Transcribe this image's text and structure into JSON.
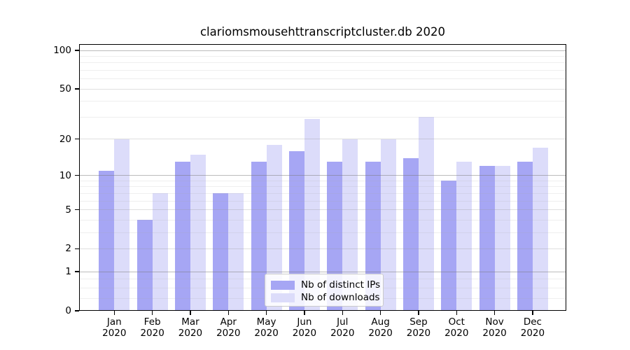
{
  "title": "clariomsmousehttranscriptcluster.db 2020",
  "chart_data": {
    "type": "bar",
    "categories": [
      "Jan",
      "Feb",
      "Mar",
      "Apr",
      "May",
      "Jun",
      "Jul",
      "Aug",
      "Sep",
      "Oct",
      "Nov",
      "Dec"
    ],
    "category_year": "2020",
    "series": [
      {
        "name": "Nb of distinct IPs",
        "color": "#a6a6f4",
        "values": [
          11,
          4,
          13,
          7,
          13,
          16,
          13,
          13,
          14,
          9,
          12,
          13
        ]
      },
      {
        "name": "Nb of downloads",
        "color": "#dcdcfa",
        "values": [
          20,
          7,
          15,
          7,
          18,
          29,
          20,
          20,
          30,
          13,
          12,
          17
        ]
      }
    ],
    "title": "clariomsmousehttranscriptcluster.db 2020",
    "xlabel": "",
    "ylabel": "",
    "yticks": [
      0,
      1,
      2,
      5,
      10,
      20,
      50,
      100
    ],
    "power_gridlines": [
      1,
      10,
      100
    ],
    "mid_gridlines": [
      2,
      5,
      20,
      50
    ],
    "minor_gridlines": [
      0.25,
      0.5,
      0.75,
      3,
      4,
      6,
      7,
      8,
      9,
      30,
      40,
      60,
      70,
      80,
      90
    ],
    "scale": "log10(v+1)",
    "ylim": [
      0,
      112
    ],
    "grid": true,
    "legend_position": "lower center"
  },
  "colors": {
    "bar_ips": "#a6a6f4",
    "bar_downloads": "#dcdcfa",
    "axis": "#000000",
    "background": "#ffffff"
  }
}
